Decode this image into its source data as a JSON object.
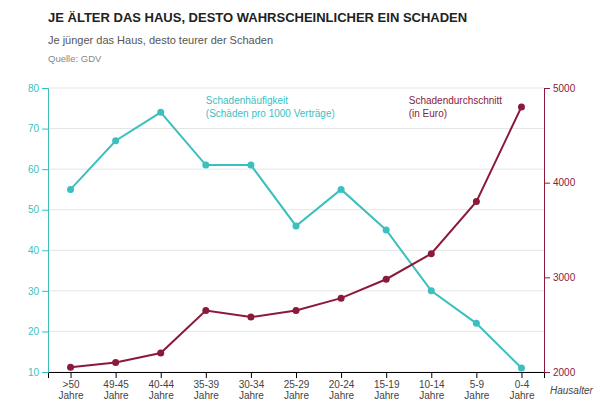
{
  "chart_data": {
    "type": "line",
    "title": "JE ÄLTER DAS HAUS, DESTO WAHRSCHEINLICHER EIN SCHADEN",
    "subtitle": "Je jünger das Haus, desto teurer der Schaden",
    "source": "Quelle: GDV",
    "x_label": "Hausalter",
    "categories": [
      ">50\nJahre",
      "49-45\nJahre",
      "40-44\nJahre",
      "35-39\nJahre",
      "30-34\nJahre",
      "25-29\nJahre",
      "20-24\nJahre",
      "15-19\nJahre",
      "10-14\nJahre",
      "5-9\nJahre",
      "0-4\nJahre"
    ],
    "series": [
      {
        "name": "Schadenhäufigkeit\n(Schäden pro 1000 Verträge)",
        "color": "#3BBFBF",
        "marker": "circle",
        "values": [
          55,
          67,
          74,
          61,
          61,
          46,
          55,
          45,
          30,
          22,
          11
        ]
      },
      {
        "name": "Schadendurchschnitt\n(in Euro)",
        "color": "#8B1A3A",
        "marker": "circle",
        "axis": "y2",
        "values": [
          2050,
          2100,
          2200,
          2650,
          2580,
          2650,
          2780,
          2980,
          3250,
          3800,
          4800
        ]
      }
    ],
    "ylim": [
      10,
      80
    ],
    "yticks": [
      10,
      20,
      30,
      40,
      50,
      60,
      70,
      80
    ],
    "y2lim": [
      2000,
      5000
    ],
    "y2ticks": [
      2000,
      3000,
      4000,
      5000
    ],
    "grid": true
  }
}
